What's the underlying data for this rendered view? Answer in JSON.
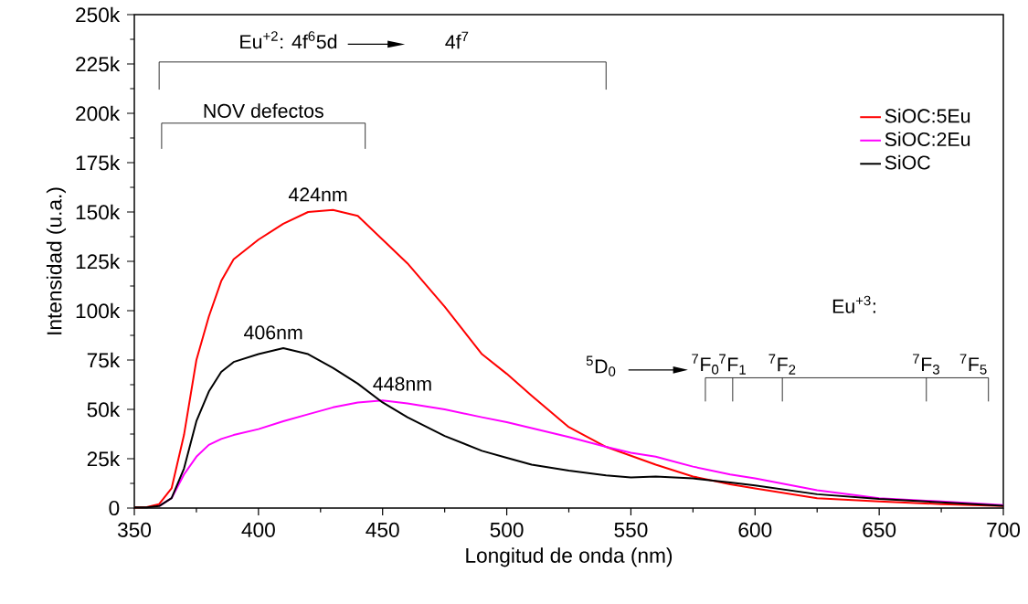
{
  "chart_data": {
    "type": "line",
    "xlabel": "Longitud de onda (nm)",
    "ylabel": "Intensidad (u.a.)",
    "x": [
      350,
      355,
      360,
      365,
      370,
      375,
      380,
      385,
      390,
      400,
      410,
      420,
      430,
      440,
      450,
      460,
      475,
      490,
      500,
      510,
      525,
      540,
      550,
      560,
      575,
      590,
      600,
      625,
      650,
      675,
      700
    ],
    "series": [
      {
        "name": "SiOC:5Eu",
        "color": "#ff0000",
        "values": [
          300,
          500,
          2000,
          10000,
          37000,
          75000,
          97000,
          115000,
          126000,
          136000,
          144000,
          150000,
          151000,
          148000,
          136000,
          124000,
          102000,
          78000,
          68000,
          57000,
          41000,
          31000,
          26500,
          22000,
          16000,
          12000,
          10000,
          5000,
          3400,
          2000,
          1000
        ]
      },
      {
        "name": "SiOC:2Eu",
        "color": "#ff00ff",
        "values": [
          null,
          null,
          1000,
          5000,
          17000,
          26000,
          32000,
          35000,
          37000,
          40000,
          44000,
          47500,
          51000,
          53500,
          54500,
          53000,
          50000,
          46000,
          43500,
          40500,
          36000,
          31000,
          28000,
          26000,
          21000,
          17000,
          15000,
          9000,
          5000,
          3300,
          1500
        ]
      },
      {
        "name": "SiOC",
        "color": "#000000",
        "values": [
          300,
          400,
          1000,
          5000,
          20000,
          44000,
          59000,
          69000,
          74000,
          78000,
          81000,
          78000,
          71000,
          63000,
          53500,
          46000,
          36500,
          29000,
          25500,
          22000,
          19000,
          16500,
          15500,
          16000,
          15000,
          13000,
          11500,
          7000,
          4600,
          2900,
          1100
        ]
      }
    ],
    "xlim": [
      350,
      700
    ],
    "xticks": [
      350,
      400,
      450,
      500,
      550,
      600,
      650,
      700
    ],
    "ylim": [
      0,
      250000
    ],
    "yticks": [
      0,
      {
        "value": 25000,
        "label": "25k"
      },
      {
        "value": 50000,
        "label": "50k"
      },
      {
        "value": 75000,
        "label": "75k"
      },
      {
        "value": 100000,
        "label": "100k"
      },
      {
        "value": 125000,
        "label": "125k"
      },
      {
        "value": 150000,
        "label": "150k"
      },
      {
        "value": 175000,
        "label": "175k"
      },
      {
        "value": 200000,
        "label": "200k"
      },
      {
        "value": 225000,
        "label": "225k"
      },
      {
        "value": 250000,
        "label": "250k"
      }
    ],
    "grid": false,
    "legend": "top right",
    "marker": "none",
    "line_style": "solid",
    "annotations": [
      {
        "text": "424nm",
        "x": 424,
        "y": 151000
      },
      {
        "text": "406nm",
        "x": 406,
        "y": 81000
      },
      {
        "text": "448nm",
        "x": 458,
        "y": 55000
      },
      "NOV defectos",
      "Eu$^{+2}$: 4f$^{6}$5d",
      "4f$^{7}$",
      "Eu$^{+3}$:",
      "$^{5}$D$_{0}$",
      "$^{7}$F$_{0}$",
      "$^{7}$F$_{1}$",
      "$^{7}$F$_{2}$",
      "$^{7}$F$_{3}$",
      "$^{7}$F$_{5}$"
    ]
  }
}
